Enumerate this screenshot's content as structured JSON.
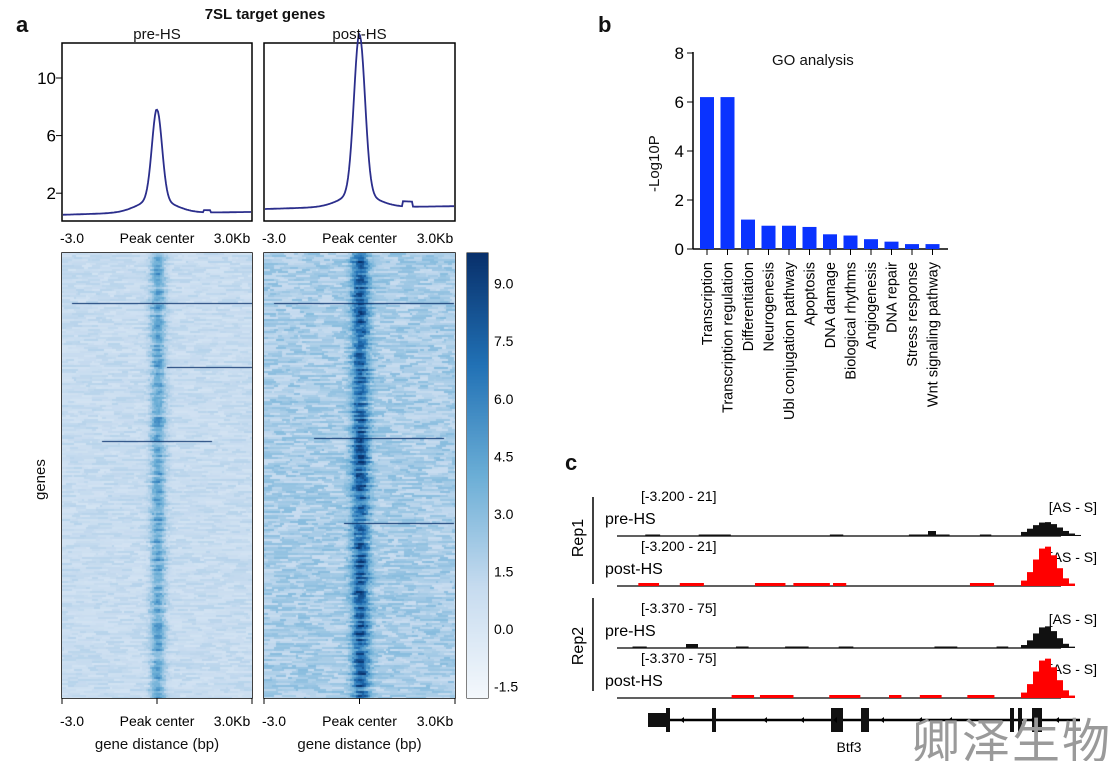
{
  "panel_letters": {
    "a": "a",
    "b": "b",
    "c": "c"
  },
  "watermark": "卿泽生物",
  "chart_data": [
    {
      "type": "line",
      "title": "7SL target genes",
      "panels": [
        "pre-HS",
        "post-HS"
      ],
      "x_ticks": [
        "-3.0",
        "Peak center",
        "3.0Kb"
      ],
      "y_ticks": [
        2,
        6,
        10
      ],
      "ylim": [
        0,
        12.5
      ],
      "line_color": "#2b2e8c",
      "series": [
        {
          "name": "pre-HS",
          "baseline": 0.5,
          "peak": 6.8
        },
        {
          "name": "post-HS",
          "baseline": 0.9,
          "peak": 12.0
        }
      ]
    },
    {
      "type": "heatmap",
      "panels": [
        "pre-HS",
        "post-HS"
      ],
      "ylabel": "genes",
      "xlabel": "gene distance (bp)",
      "x_ticks": [
        "-3.0",
        "Peak center",
        "3.0Kb"
      ],
      "colorbar_ticks": [
        "9.0",
        "7.5",
        "6.0",
        "4.5",
        "3.0",
        "1.5",
        "0.0",
        "-1.5"
      ],
      "colorbar_range": [
        -1.8,
        9.8
      ],
      "colors": {
        "low": "#f4f8fc",
        "high": "#08306b"
      }
    },
    {
      "type": "bar",
      "title": "GO analysis",
      "ylabel": "-Log10P",
      "ylim": [
        0,
        8
      ],
      "y_ticks": [
        "0",
        "2",
        "4",
        "6",
        "8"
      ],
      "bar_color": "#0a33ff",
      "categories": [
        "Transcription",
        "Transcription regulation",
        "Differentiation",
        "Neurogenesis",
        "Ubl conjugation pathway",
        "Apoptosis",
        "DNA damage",
        "Biological rhythms",
        "Angiogenesis",
        "DNA repair",
        "Stress response",
        "Wnt signaling pathway"
      ],
      "values": [
        6.2,
        6.2,
        1.2,
        0.95,
        0.95,
        0.9,
        0.6,
        0.55,
        0.4,
        0.3,
        0.2,
        0.2
      ]
    },
    {
      "type": "genome_tracks",
      "gene": "Btf3",
      "groups": [
        "Rep1",
        "Rep2"
      ],
      "tracks": [
        {
          "group": "Rep1",
          "name": "pre-HS",
          "range": "[-3.200 - 21]",
          "strand": "[AS - S]",
          "color": "#111111"
        },
        {
          "group": "Rep1",
          "name": "post-HS",
          "range": "[-3.200 - 21]",
          "strand": "[AS - S]",
          "color": "#ff0000"
        },
        {
          "group": "Rep2",
          "name": "pre-HS",
          "range": "[-3.370 - 75]",
          "strand": "[AS - S]",
          "color": "#111111"
        },
        {
          "group": "Rep2",
          "name": "post-HS",
          "range": "[-3.370 - 75]",
          "strand": "[AS - S]",
          "color": "#ff0000"
        }
      ]
    }
  ]
}
